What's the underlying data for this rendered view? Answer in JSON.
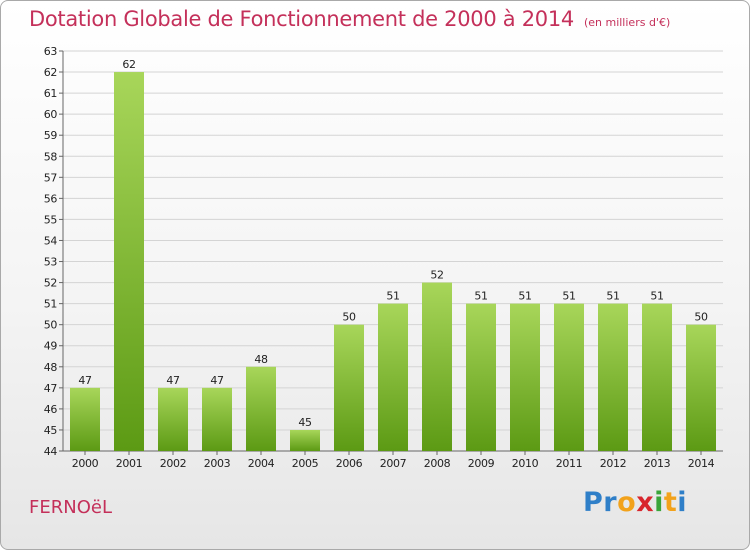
{
  "header": {
    "title": "Dotation Globale de Fonctionnement de 2000 à 2014",
    "unit": "(en milliers d'€)"
  },
  "footer": {
    "commune": "FERNOëL",
    "logo": {
      "letters": [
        "P",
        "r",
        "o",
        "x",
        "i",
        "t",
        "i"
      ],
      "colors": [
        "#2f7fc8",
        "#2f7fc8",
        "#f2a21b",
        "#d8262d",
        "#3aa53a",
        "#f2a21b",
        "#2f7fc8"
      ]
    }
  },
  "chart_data": {
    "type": "bar",
    "title": "Dotation Globale de Fonctionnement de 2000 à 2014",
    "xlabel": "",
    "ylabel": "",
    "categories": [
      "2000",
      "2001",
      "2002",
      "2003",
      "2004",
      "2005",
      "2006",
      "2007",
      "2008",
      "2009",
      "2010",
      "2011",
      "2012",
      "2013",
      "2014"
    ],
    "values": [
      47,
      62,
      47,
      47,
      48,
      45,
      50,
      51,
      52,
      51,
      51,
      51,
      51,
      51,
      50
    ],
    "ylim": [
      44,
      63
    ],
    "yticks": [
      44,
      45,
      46,
      47,
      48,
      49,
      50,
      51,
      52,
      53,
      54,
      55,
      56,
      57,
      58,
      59,
      60,
      61,
      62,
      63
    ],
    "grid": true,
    "bar_color_top": "#a8d65a",
    "bar_color_bottom": "#5c9a14",
    "grid_color": "#d4d4d4"
  }
}
